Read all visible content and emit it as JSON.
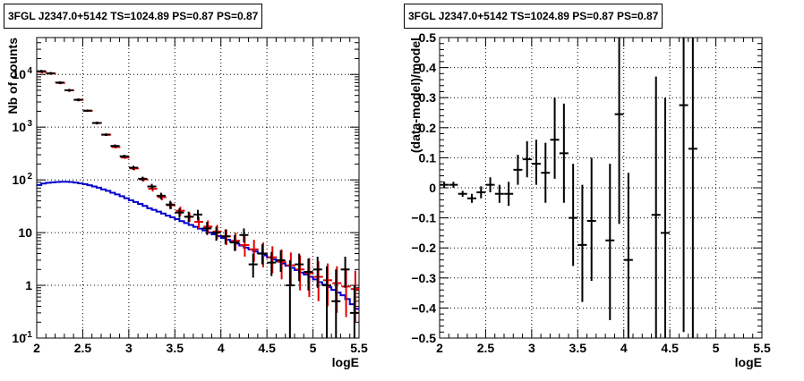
{
  "panels": [
    {
      "title": "3FGL J2347.0+5142 TS=1024.89 PS=0.87 PS=0.87"
    },
    {
      "title": "3FGL J2347.0+5142 TS=1024.89 PS=0.87 PS=0.87"
    }
  ],
  "chart_data": [
    {
      "type": "line",
      "title": "3FGL J2347.0+5142 TS=1024.89 PS=0.87 PS=0.87",
      "xlabel": "logE",
      "ylabel": "Nb of counts",
      "xlim": [
        2,
        5.5
      ],
      "ylim": [
        0.1,
        50000
      ],
      "y_scale": "log",
      "grid": true,
      "x_ticks": [
        "2",
        "2.5",
        "3",
        "3.5",
        "4",
        "4.5",
        "5",
        "5.5"
      ],
      "y_ticks": [
        {
          "v": 0.1,
          "label": "10",
          "sup": "-1"
        },
        {
          "v": 1,
          "label": "1",
          "sup": ""
        },
        {
          "v": 10,
          "label": "10",
          "sup": ""
        },
        {
          "v": 100,
          "label": "10",
          "sup": "2"
        },
        {
          "v": 1000,
          "label": "10",
          "sup": "3"
        },
        {
          "v": 10000,
          "label": "10",
          "sup": "4"
        }
      ],
      "colors": {
        "data": "#000000",
        "model": "#e00000",
        "component": "#0000cc"
      },
      "data_points": [
        {
          "x": 2.05,
          "y": 11500,
          "lo": 10800,
          "hi": 12200
        },
        {
          "x": 2.15,
          "y": 10500,
          "lo": 9900,
          "hi": 11100
        },
        {
          "x": 2.25,
          "y": 7000,
          "lo": 6600,
          "hi": 7400
        },
        {
          "x": 2.35,
          "y": 5000,
          "lo": 4700,
          "hi": 5300
        },
        {
          "x": 2.45,
          "y": 3300,
          "lo": 3100,
          "hi": 3500
        },
        {
          "x": 2.55,
          "y": 2050,
          "lo": 1950,
          "hi": 2150
        },
        {
          "x": 2.65,
          "y": 1200,
          "lo": 1130,
          "hi": 1270
        },
        {
          "x": 2.75,
          "y": 720,
          "lo": 680,
          "hi": 760
        },
        {
          "x": 2.85,
          "y": 440,
          "lo": 410,
          "hi": 470
        },
        {
          "x": 2.95,
          "y": 280,
          "lo": 260,
          "hi": 300
        },
        {
          "x": 3.05,
          "y": 170,
          "lo": 155,
          "hi": 185
        },
        {
          "x": 3.15,
          "y": 105,
          "lo": 95,
          "hi": 115
        },
        {
          "x": 3.25,
          "y": 75,
          "lo": 66,
          "hi": 84
        },
        {
          "x": 3.35,
          "y": 50,
          "lo": 43,
          "hi": 57
        },
        {
          "x": 3.45,
          "y": 34,
          "lo": 28,
          "hi": 40
        },
        {
          "x": 3.55,
          "y": 24,
          "lo": 19,
          "hi": 29
        },
        {
          "x": 3.65,
          "y": 20,
          "lo": 16,
          "hi": 25
        },
        {
          "x": 3.75,
          "y": 22,
          "lo": 17,
          "hi": 27
        },
        {
          "x": 3.85,
          "y": 12,
          "lo": 9,
          "hi": 16
        },
        {
          "x": 3.95,
          "y": 10,
          "lo": 7,
          "hi": 13
        },
        {
          "x": 4.05,
          "y": 8.5,
          "lo": 6,
          "hi": 11.5
        },
        {
          "x": 4.15,
          "y": 6.5,
          "lo": 4.5,
          "hi": 9
        },
        {
          "x": 4.25,
          "y": 9,
          "lo": 6.5,
          "hi": 12
        },
        {
          "x": 4.35,
          "y": 2.5,
          "lo": 1.4,
          "hi": 4
        },
        {
          "x": 4.45,
          "y": 4,
          "lo": 2.5,
          "hi": 6
        },
        {
          "x": 4.55,
          "y": 2.7,
          "lo": 1.5,
          "hi": 4.3
        },
        {
          "x": 4.65,
          "y": 3,
          "lo": 1.8,
          "hi": 4.6
        },
        {
          "x": 4.75,
          "y": 1,
          "lo": 0.1,
          "hi": 3
        },
        {
          "x": 4.85,
          "y": 2.5,
          "lo": 1.2,
          "hi": 4
        },
        {
          "x": 4.95,
          "y": 1.8,
          "lo": 0.8,
          "hi": 3.2
        },
        {
          "x": 5.05,
          "y": 2,
          "lo": 0.9,
          "hi": 3.5
        },
        {
          "x": 5.15,
          "y": 1,
          "lo": 0.1,
          "hi": 2.3
        },
        {
          "x": 5.25,
          "y": 0.5,
          "lo": 0.1,
          "hi": 2
        },
        {
          "x": 5.35,
          "y": 2,
          "lo": 0.9,
          "hi": 3.5
        },
        {
          "x": 5.45,
          "y": 0.3,
          "lo": 0.1,
          "hi": 1
        }
      ],
      "model_points": [
        {
          "x": 2.05,
          "y": 11200,
          "lo": 10500,
          "hi": 11900
        },
        {
          "x": 2.15,
          "y": 10400,
          "lo": 9800,
          "hi": 11000
        },
        {
          "x": 2.25,
          "y": 6900,
          "lo": 6500,
          "hi": 7300
        },
        {
          "x": 2.35,
          "y": 5000,
          "lo": 4700,
          "hi": 5300
        },
        {
          "x": 2.45,
          "y": 3300,
          "lo": 3100,
          "hi": 3500
        },
        {
          "x": 2.55,
          "y": 2050,
          "lo": 1950,
          "hi": 2150
        },
        {
          "x": 2.65,
          "y": 1200,
          "lo": 1130,
          "hi": 1270
        },
        {
          "x": 2.75,
          "y": 720,
          "lo": 680,
          "hi": 760
        },
        {
          "x": 2.85,
          "y": 420,
          "lo": 395,
          "hi": 445
        },
        {
          "x": 2.95,
          "y": 265,
          "lo": 250,
          "hi": 280
        },
        {
          "x": 3.05,
          "y": 165,
          "lo": 152,
          "hi": 178
        },
        {
          "x": 3.15,
          "y": 102,
          "lo": 93,
          "hi": 111
        },
        {
          "x": 3.25,
          "y": 68,
          "lo": 60,
          "hi": 76
        },
        {
          "x": 3.35,
          "y": 47,
          "lo": 41,
          "hi": 53
        },
        {
          "x": 3.45,
          "y": 33,
          "lo": 28,
          "hi": 38
        },
        {
          "x": 3.55,
          "y": 26,
          "lo": 21,
          "hi": 31
        },
        {
          "x": 3.65,
          "y": 20,
          "lo": 16,
          "hi": 24
        },
        {
          "x": 3.75,
          "y": 16,
          "lo": 12,
          "hi": 20
        },
        {
          "x": 3.85,
          "y": 13,
          "lo": 9.5,
          "hi": 17
        },
        {
          "x": 3.95,
          "y": 10.5,
          "lo": 7.5,
          "hi": 14
        },
        {
          "x": 4.05,
          "y": 8.5,
          "lo": 5.8,
          "hi": 11.5
        },
        {
          "x": 4.15,
          "y": 7,
          "lo": 4.5,
          "hi": 10
        },
        {
          "x": 4.25,
          "y": 5.8,
          "lo": 3.5,
          "hi": 8.5
        },
        {
          "x": 4.35,
          "y": 4.8,
          "lo": 2.8,
          "hi": 7.3
        },
        {
          "x": 4.45,
          "y": 4,
          "lo": 2.2,
          "hi": 6.5
        },
        {
          "x": 4.55,
          "y": 3.4,
          "lo": 1.7,
          "hi": 5.5
        },
        {
          "x": 4.65,
          "y": 2.8,
          "lo": 1.3,
          "hi": 4.8
        },
        {
          "x": 4.75,
          "y": 2.4,
          "lo": 1,
          "hi": 4.2
        },
        {
          "x": 4.85,
          "y": 2,
          "lo": 0.8,
          "hi": 3.7
        },
        {
          "x": 4.95,
          "y": 1.7,
          "lo": 0.6,
          "hi": 3.3
        },
        {
          "x": 5.05,
          "y": 1.45,
          "lo": 0.5,
          "hi": 2.9
        },
        {
          "x": 5.15,
          "y": 1.25,
          "lo": 0.4,
          "hi": 2.6
        },
        {
          "x": 5.25,
          "y": 1.1,
          "lo": 0.3,
          "hi": 2.3
        },
        {
          "x": 5.35,
          "y": 0.95,
          "lo": 0.25,
          "hi": 2.1
        },
        {
          "x": 5.45,
          "y": 0.85,
          "lo": 0.2,
          "hi": 1.9
        }
      ],
      "component_steps": [
        {
          "x": 2.0,
          "y": 80
        },
        {
          "x": 2.05,
          "y": 85
        },
        {
          "x": 2.1,
          "y": 88
        },
        {
          "x": 2.15,
          "y": 90
        },
        {
          "x": 2.2,
          "y": 91
        },
        {
          "x": 2.25,
          "y": 92
        },
        {
          "x": 2.3,
          "y": 92
        },
        {
          "x": 2.35,
          "y": 91
        },
        {
          "x": 2.4,
          "y": 89
        },
        {
          "x": 2.45,
          "y": 86
        },
        {
          "x": 2.5,
          "y": 83
        },
        {
          "x": 2.55,
          "y": 79
        },
        {
          "x": 2.6,
          "y": 75
        },
        {
          "x": 2.65,
          "y": 71
        },
        {
          "x": 2.7,
          "y": 66
        },
        {
          "x": 2.75,
          "y": 62
        },
        {
          "x": 2.8,
          "y": 57
        },
        {
          "x": 2.85,
          "y": 53
        },
        {
          "x": 2.9,
          "y": 49
        },
        {
          "x": 2.95,
          "y": 45
        },
        {
          "x": 3.0,
          "y": 41
        },
        {
          "x": 3.05,
          "y": 38
        },
        {
          "x": 3.1,
          "y": 35
        },
        {
          "x": 3.15,
          "y": 32
        },
        {
          "x": 3.2,
          "y": 29
        },
        {
          "x": 3.25,
          "y": 27
        },
        {
          "x": 3.3,
          "y": 25
        },
        {
          "x": 3.35,
          "y": 23
        },
        {
          "x": 3.4,
          "y": 21
        },
        {
          "x": 3.45,
          "y": 19.5
        },
        {
          "x": 3.5,
          "y": 18
        },
        {
          "x": 3.55,
          "y": 16.5
        },
        {
          "x": 3.6,
          "y": 15.2
        },
        {
          "x": 3.65,
          "y": 14
        },
        {
          "x": 3.7,
          "y": 12.9
        },
        {
          "x": 3.75,
          "y": 11.9
        },
        {
          "x": 3.8,
          "y": 11
        },
        {
          "x": 3.85,
          "y": 10.1
        },
        {
          "x": 3.9,
          "y": 9.3
        },
        {
          "x": 3.95,
          "y": 8.6
        },
        {
          "x": 4.0,
          "y": 7.9
        },
        {
          "x": 4.05,
          "y": 7.3
        },
        {
          "x": 4.1,
          "y": 6.7
        },
        {
          "x": 4.15,
          "y": 6.2
        },
        {
          "x": 4.2,
          "y": 5.7
        },
        {
          "x": 4.25,
          "y": 5.2
        },
        {
          "x": 4.3,
          "y": 4.8
        },
        {
          "x": 4.35,
          "y": 4.4
        },
        {
          "x": 4.4,
          "y": 4.05
        },
        {
          "x": 4.45,
          "y": 3.7
        },
        {
          "x": 4.5,
          "y": 3.4
        },
        {
          "x": 4.55,
          "y": 3.1
        },
        {
          "x": 4.6,
          "y": 2.85
        },
        {
          "x": 4.65,
          "y": 2.6
        },
        {
          "x": 4.7,
          "y": 2.35
        },
        {
          "x": 4.75,
          "y": 2.15
        },
        {
          "x": 4.8,
          "y": 1.95
        },
        {
          "x": 4.85,
          "y": 1.75
        },
        {
          "x": 4.9,
          "y": 1.6
        },
        {
          "x": 4.95,
          "y": 1.45
        },
        {
          "x": 5.0,
          "y": 1.3
        },
        {
          "x": 5.05,
          "y": 1.15
        },
        {
          "x": 5.1,
          "y": 1.03
        },
        {
          "x": 5.15,
          "y": 0.92
        },
        {
          "x": 5.2,
          "y": 0.82
        },
        {
          "x": 5.25,
          "y": 0.73
        },
        {
          "x": 5.3,
          "y": 0.65
        },
        {
          "x": 5.35,
          "y": 0.55
        },
        {
          "x": 5.4,
          "y": 0.44
        },
        {
          "x": 5.45,
          "y": 0.36
        },
        {
          "x": 5.5,
          "y": 0.34
        }
      ]
    },
    {
      "type": "scatter",
      "title": "3FGL J2347.0+5142 TS=1024.89 PS=0.87 PS=0.87",
      "xlabel": "logE",
      "ylabel": "(data-model)/model",
      "xlim": [
        2,
        5.5
      ],
      "ylim": [
        -0.5,
        0.5
      ],
      "grid": true,
      "x_ticks": [
        "2",
        "2.5",
        "3",
        "3.5",
        "4",
        "4.5",
        "5",
        "5.5"
      ],
      "y_ticks": [
        "-0.5",
        "-0.4",
        "-0.3",
        "-0.2",
        "-0.1",
        "0",
        "0.1",
        "0.2",
        "0.3",
        "0.4",
        "0.5"
      ],
      "points": [
        {
          "x": 2.05,
          "y": 0.01,
          "lo": 0.0,
          "hi": 0.02
        },
        {
          "x": 2.15,
          "y": 0.01,
          "lo": 0.0,
          "hi": 0.02
        },
        {
          "x": 2.25,
          "y": -0.02,
          "lo": -0.03,
          "hi": -0.01
        },
        {
          "x": 2.35,
          "y": -0.035,
          "lo": -0.05,
          "hi": -0.02
        },
        {
          "x": 2.45,
          "y": -0.015,
          "lo": -0.035,
          "hi": 0.005
        },
        {
          "x": 2.55,
          "y": 0.01,
          "lo": -0.015,
          "hi": 0.035
        },
        {
          "x": 2.65,
          "y": -0.02,
          "lo": -0.05,
          "hi": 0.01
        },
        {
          "x": 2.75,
          "y": -0.02,
          "lo": -0.06,
          "hi": 0.02
        },
        {
          "x": 2.85,
          "y": 0.06,
          "lo": 0.01,
          "hi": 0.11
        },
        {
          "x": 2.95,
          "y": 0.095,
          "lo": 0.035,
          "hi": 0.155
        },
        {
          "x": 3.05,
          "y": 0.08,
          "lo": 0.01,
          "hi": 0.16
        },
        {
          "x": 3.15,
          "y": 0.05,
          "lo": -0.05,
          "hi": 0.15
        },
        {
          "x": 3.25,
          "y": 0.16,
          "lo": 0.03,
          "hi": 0.3
        },
        {
          "x": 3.35,
          "y": 0.115,
          "lo": -0.05,
          "hi": 0.28
        },
        {
          "x": 3.45,
          "y": -0.1,
          "lo": -0.26,
          "hi": 0.08
        },
        {
          "x": 3.55,
          "y": -0.19,
          "lo": -0.38,
          "hi": 0.01
        },
        {
          "x": 3.65,
          "y": -0.11,
          "lo": -0.31,
          "hi": 0.1
        },
        {
          "x": 3.85,
          "y": -0.175,
          "lo": -0.44,
          "hi": 0.08
        },
        {
          "x": 3.95,
          "y": 0.245,
          "lo": -0.12,
          "hi": 0.61
        },
        {
          "x": 4.05,
          "y": -0.24,
          "lo": -0.52,
          "hi": 0.05
        },
        {
          "x": 4.35,
          "y": -0.09,
          "lo": -0.55,
          "hi": 0.37
        },
        {
          "x": 4.45,
          "y": -0.15,
          "lo": -0.6,
          "hi": 0.3
        },
        {
          "x": 4.65,
          "y": 0.275,
          "lo": -0.48,
          "hi": 0.61
        },
        {
          "x": 4.75,
          "y": 0.13,
          "lo": -0.5,
          "hi": 0.6
        }
      ]
    }
  ]
}
